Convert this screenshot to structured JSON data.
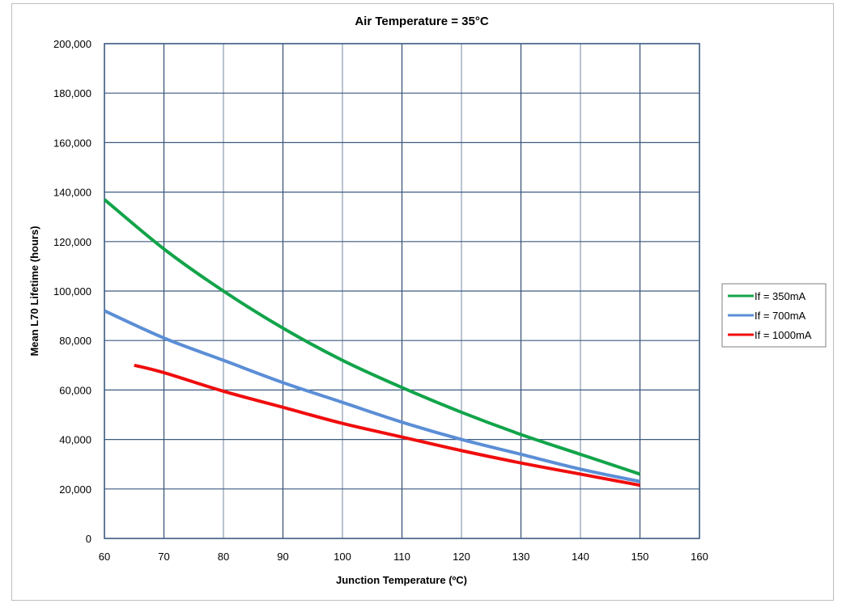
{
  "chart_data": {
    "type": "line",
    "title": "Air Temperature = 35°C",
    "xlabel": "Junction Temperature (ºC)",
    "ylabel": "Mean L70  Lifetime (hours)",
    "xlim": [
      60,
      160
    ],
    "ylim": [
      0,
      200000
    ],
    "grid": true,
    "legend_position": "right",
    "x_ticks": [
      60,
      70,
      80,
      90,
      100,
      110,
      120,
      130,
      140,
      150,
      160
    ],
    "x_tick_labels": [
      "60",
      "70",
      "80",
      "90",
      "100",
      "110",
      "120",
      "130",
      "140",
      "150",
      "160"
    ],
    "y_ticks": [
      0,
      20000,
      40000,
      60000,
      80000,
      100000,
      120000,
      140000,
      160000,
      180000,
      200000
    ],
    "y_tick_labels": [
      "0",
      "20,000",
      "40,000",
      "60,000",
      "80,000",
      "100,000",
      "120,000",
      "140,000",
      "160,000",
      "180,000",
      "200,000"
    ],
    "series": [
      {
        "name": "If = 350mA",
        "color": "#12a44a",
        "x": [
          60,
          70,
          80,
          90,
          100,
          110,
          120,
          130,
          140,
          150
        ],
        "values": [
          137000,
          117000,
          100000,
          85000,
          72000,
          61000,
          51000,
          42000,
          34000,
          26000
        ]
      },
      {
        "name": "If = 700mA",
        "color": "#5b8ed6",
        "x": [
          60,
          70,
          80,
          90,
          100,
          110,
          120,
          130,
          140,
          150
        ],
        "values": [
          92000,
          81000,
          72000,
          63000,
          55000,
          47000,
          40000,
          34000,
          28000,
          23000
        ]
      },
      {
        "name": "If = 1000mA",
        "color": "#f00d0d",
        "x": [
          65,
          70,
          80,
          90,
          100,
          110,
          120,
          130,
          140,
          150
        ],
        "values": [
          70000,
          67000,
          59500,
          53000,
          46500,
          41000,
          35500,
          30500,
          26000,
          21500
        ]
      }
    ]
  }
}
